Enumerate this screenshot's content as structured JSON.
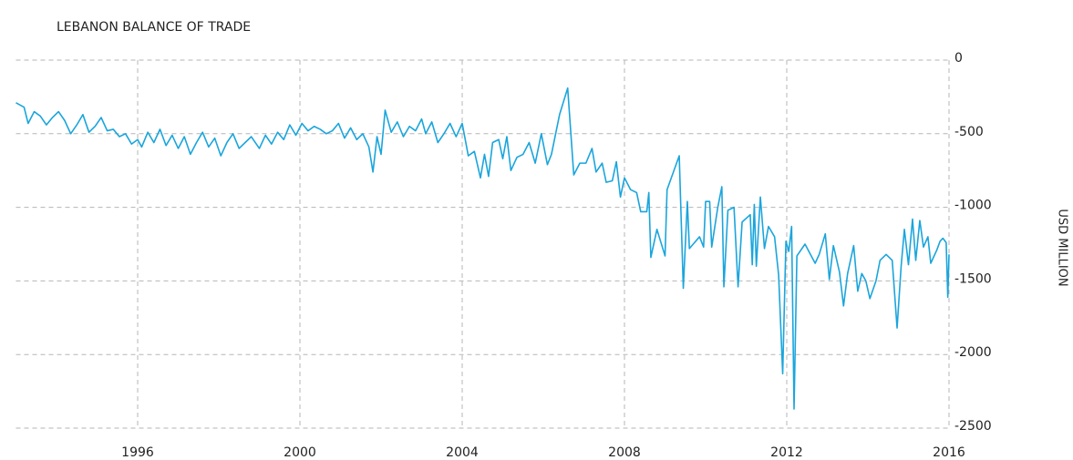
{
  "chart_data": {
    "type": "line",
    "title": "LEBANON BALANCE OF TRADE",
    "y_label": "USD MILLION",
    "xlim": [
      1993,
      2016
    ],
    "ylim": [
      -2500,
      0
    ],
    "xticks": [
      1996,
      2000,
      2004,
      2008,
      2012,
      2016
    ],
    "yticks": [
      0,
      -500,
      -1000,
      -1500,
      -2000,
      -2500
    ],
    "grid": true,
    "y_axis_side": "right",
    "series": [
      {
        "name": "Balance of Trade",
        "color": "#1aa5dc",
        "x": [
          1993.0,
          1993.2,
          1993.3,
          1993.45,
          1993.6,
          1993.75,
          1993.9,
          1994.05,
          1994.2,
          1994.35,
          1994.5,
          1994.65,
          1994.8,
          1994.95,
          1995.1,
          1995.25,
          1995.4,
          1995.55,
          1995.7,
          1995.85,
          1996.0,
          1996.1,
          1996.25,
          1996.4,
          1996.55,
          1996.7,
          1996.85,
          1997.0,
          1997.15,
          1997.3,
          1997.45,
          1997.6,
          1997.75,
          1997.9,
          1998.05,
          1998.2,
          1998.35,
          1998.5,
          1998.65,
          1998.8,
          1999.0,
          1999.15,
          1999.3,
          1999.45,
          1999.6,
          1999.75,
          1999.9,
          2000.05,
          2000.2,
          2000.35,
          2000.5,
          2000.65,
          2000.8,
          2000.95,
          2001.1,
          2001.25,
          2001.4,
          2001.55,
          2001.7,
          2001.8,
          2001.9,
          2002.0,
          2002.1,
          2002.25,
          2002.4,
          2002.55,
          2002.7,
          2002.85,
          2003.0,
          2003.1,
          2003.25,
          2003.4,
          2003.55,
          2003.7,
          2003.85,
          2004.0,
          2004.15,
          2004.3,
          2004.45,
          2004.55,
          2004.65,
          2004.75,
          2004.9,
          2005.0,
          2005.1,
          2005.2,
          2005.35,
          2005.5,
          2005.65,
          2005.8,
          2005.95,
          2006.1,
          2006.2,
          2006.4,
          2006.6,
          2006.75,
          2006.9,
          2007.05,
          2007.2,
          2007.3,
          2007.45,
          2007.55,
          2007.7,
          2007.8,
          2007.9,
          2008.0,
          2008.15,
          2008.3,
          2008.4,
          2008.55,
          2008.6,
          2008.65,
          2008.8,
          2009.0,
          2009.05,
          2009.35,
          2009.45,
          2009.55,
          2009.6,
          2009.85,
          2009.95,
          2010.0,
          2010.1,
          2010.15,
          2010.3,
          2010.4,
          2010.45,
          2010.55,
          2010.7,
          2010.8,
          2010.9,
          2011.1,
          2011.15,
          2011.2,
          2011.25,
          2011.35,
          2011.45,
          2011.55,
          2011.7,
          2011.8,
          2011.9,
          2011.98,
          2012.05,
          2012.12,
          2012.18,
          2012.25,
          2012.45,
          2012.7,
          2012.8,
          2012.95,
          2013.05,
          2013.15,
          2013.3,
          2013.4,
          2013.5,
          2013.65,
          2013.75,
          2013.85,
          2013.95,
          2014.05,
          2014.2,
          2014.3,
          2014.45,
          2014.6,
          2014.72,
          2014.82,
          2014.9,
          2015.0,
          2015.1,
          2015.18,
          2015.28,
          2015.37,
          2015.48,
          2015.55,
          2015.7,
          2015.78,
          2015.85,
          2015.93,
          2015.97,
          2016.0
        ],
        "values": [
          -290,
          -320,
          -430,
          -350,
          -380,
          -440,
          -390,
          -350,
          -410,
          -500,
          -440,
          -370,
          -490,
          -450,
          -390,
          -480,
          -470,
          -520,
          -500,
          -570,
          -540,
          -590,
          -490,
          -560,
          -470,
          -580,
          -510,
          -600,
          -520,
          -640,
          -560,
          -490,
          -590,
          -530,
          -650,
          -560,
          -500,
          -600,
          -560,
          -520,
          -600,
          -510,
          -570,
          -490,
          -540,
          -440,
          -510,
          -430,
          -480,
          -450,
          -470,
          -500,
          -480,
          -430,
          -530,
          -460,
          -540,
          -500,
          -590,
          -760,
          -520,
          -640,
          -340,
          -490,
          -420,
          -520,
          -450,
          -480,
          -400,
          -500,
          -420,
          -560,
          -500,
          -430,
          -520,
          -430,
          -650,
          -620,
          -800,
          -640,
          -790,
          -560,
          -540,
          -670,
          -520,
          -750,
          -660,
          -640,
          -560,
          -700,
          -500,
          -710,
          -640,
          -370,
          -190,
          -780,
          -700,
          -700,
          -600,
          -760,
          -700,
          -830,
          -820,
          -690,
          -930,
          -800,
          -880,
          -900,
          -1030,
          -1030,
          -900,
          -1340,
          -1150,
          -1330,
          -880,
          -650,
          -1550,
          -960,
          -1280,
          -1200,
          -1270,
          -960,
          -960,
          -1270,
          -1000,
          -860,
          -1540,
          -1020,
          -1000,
          -1540,
          -1100,
          -1050,
          -1390,
          -980,
          -1400,
          -930,
          -1280,
          -1130,
          -1200,
          -1460,
          -2130,
          -1230,
          -1300,
          -1130,
          -2370,
          -1330,
          -1250,
          -1380,
          -1320,
          -1180,
          -1490,
          -1260,
          -1440,
          -1670,
          -1450,
          -1260,
          -1570,
          -1450,
          -1500,
          -1620,
          -1500,
          -1360,
          -1320,
          -1360,
          -1820,
          -1400,
          -1150,
          -1390,
          -1080,
          -1360,
          -1090,
          -1270,
          -1200,
          -1380,
          -1290,
          -1230,
          -1210,
          -1240,
          -1610,
          -1320
        ]
      }
    ]
  }
}
